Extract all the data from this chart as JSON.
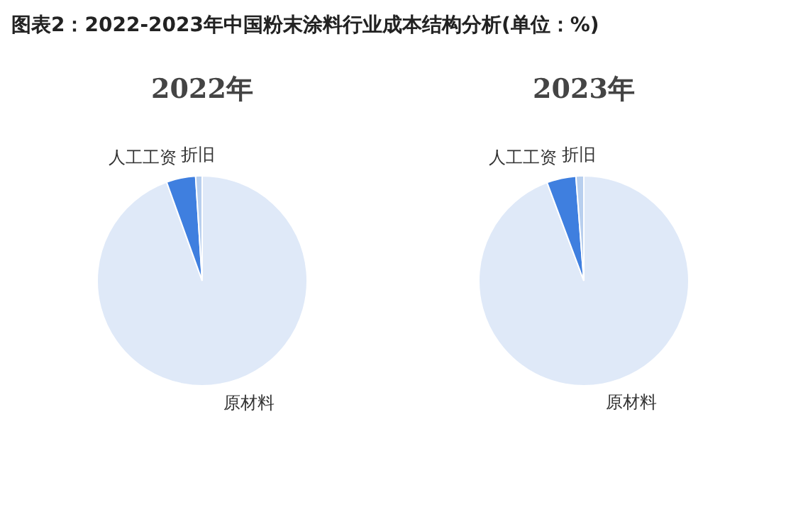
{
  "chart_data": [
    {
      "type": "pie",
      "title": "图表2：2022-2023年中国粉末涂料行业成本结构分析(单位：%)",
      "subtitle": "2022年",
      "categories": [
        "原材料",
        "人工工资",
        "折旧"
      ],
      "values": [
        94.5,
        4.5,
        1.0
      ],
      "colors": [
        "#dfe9f8",
        "#3f7fdf",
        "#b8cfee"
      ],
      "legend": false
    },
    {
      "type": "pie",
      "subtitle": "2023年",
      "categories": [
        "原材料",
        "人工工资",
        "折旧"
      ],
      "values": [
        94.3,
        4.5,
        1.2
      ],
      "colors": [
        "#dfe9f8",
        "#3f7fdf",
        "#b8cfee"
      ],
      "legend": false
    }
  ]
}
